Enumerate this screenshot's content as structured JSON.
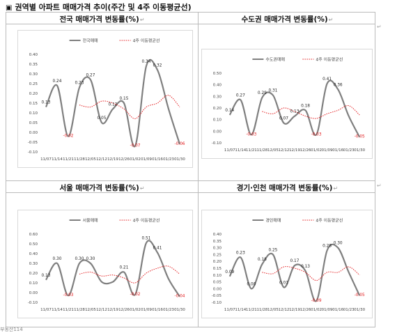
{
  "header": {
    "bullet": "▣",
    "title": "권역별 아파트 매매가격 추이(주간 및 4주 이동평균선)"
  },
  "return_mark": "↵",
  "colors": {
    "line": "#7f7f7f",
    "avg": "#e31a1c",
    "label_pos": "#222222",
    "label_neg": "#e31a1c",
    "axis_text": "#444444"
  },
  "charts": [
    {
      "title": "전국 매매가격 변동률(%)",
      "legend_line": "전국매매",
      "legend_avg": "4주 이동평균선",
      "yticks": [
        "0.40",
        "0.35",
        "0.30",
        "0.25",
        "0.20",
        "0.15",
        "0.10",
        "0.05",
        "0.00",
        "-0.05",
        "-0.10"
      ],
      "chart_data": {
        "type": "line",
        "ylim": [
          -0.1,
          0.4
        ],
        "categories": [
          "11/07",
          "11/14",
          "11/21",
          "11/28",
          "12/05",
          "12/12",
          "12/19",
          "12/26",
          "01/02",
          "01/09",
          "01/16",
          "01/23",
          "01/30"
        ],
        "series": [
          {
            "name": "전국매매",
            "values": [
              0.13,
              0.24,
              -0.02,
              0.23,
              0.27,
              0.05,
              0.12,
              0.15,
              -0.07,
              0.34,
              0.32,
              0.12,
              -0.06
            ]
          },
          {
            "name": "4주 이동평균선",
            "values": [
              null,
              null,
              null,
              0.14,
              0.13,
              0.16,
              0.15,
              0.12,
              0.07,
              0.13,
              0.15,
              0.19,
              0.13
            ]
          }
        ]
      },
      "labels": [
        {
          "i": 0,
          "t": "0.13"
        },
        {
          "i": 1,
          "t": "0.24"
        },
        {
          "i": 2,
          "t": "-0.02"
        },
        {
          "i": 3,
          "t": "0.23"
        },
        {
          "i": 4,
          "t": "0.27"
        },
        {
          "i": 5,
          "t": "0.05"
        },
        {
          "i": 6,
          "t": "0.12"
        },
        {
          "i": 7,
          "t": "0.15"
        },
        {
          "i": 8,
          "t": "-0.07"
        },
        {
          "i": 9,
          "t": "0.34"
        },
        {
          "i": 10,
          "t": "0.32"
        },
        {
          "i": 12,
          "t": "-0.06"
        }
      ]
    },
    {
      "title": "수도권 매매가격 변동률(%)",
      "legend_line": "수도권매매",
      "legend_avg": "4주 이동평균선",
      "yticks": [
        "0.50",
        "0.40",
        "0.30",
        "0.20",
        "0.10",
        "0.00",
        "-0.10"
      ],
      "chart_data": {
        "type": "line",
        "ylim": [
          -0.1,
          0.5
        ],
        "categories": [
          "11/07",
          "11/14",
          "11/21",
          "11/28",
          "12/05",
          "12/12",
          "12/19",
          "12/26",
          "01/02",
          "01/09",
          "01/16",
          "01/23",
          "01/30"
        ],
        "series": [
          {
            "name": "수도권매매",
            "values": [
              0.14,
              0.27,
              -0.03,
              0.29,
              0.31,
              0.07,
              0.13,
              0.18,
              -0.03,
              0.41,
              0.36,
              0.13,
              -0.05
            ]
          },
          {
            "name": "4주 이동평균선",
            "values": [
              null,
              null,
              null,
              0.17,
              0.15,
              0.2,
              0.17,
              0.13,
              0.11,
              0.15,
              0.18,
              0.22,
              0.14
            ]
          }
        ]
      },
      "labels": [
        {
          "i": 0,
          "t": "0.14"
        },
        {
          "i": 1,
          "t": "0.27"
        },
        {
          "i": 2,
          "t": "-0.03"
        },
        {
          "i": 3,
          "t": "0.29"
        },
        {
          "i": 4,
          "t": "0.31"
        },
        {
          "i": 5,
          "t": "0.07"
        },
        {
          "i": 6,
          "t": "0.13"
        },
        {
          "i": 7,
          "t": "0.18"
        },
        {
          "i": 8,
          "t": "-0.03"
        },
        {
          "i": 9,
          "t": "0.41"
        },
        {
          "i": 10,
          "t": "0.36"
        },
        {
          "i": 12,
          "t": "-0.05"
        }
      ]
    },
    {
      "title": "서울 매매가격 변동률(%)",
      "legend_line": "서울매매",
      "legend_avg": "4주 이동평균선",
      "yticks": [
        "0.60",
        "0.50",
        "0.40",
        "0.30",
        "0.20",
        "0.10",
        "0.00",
        "-0.10"
      ],
      "chart_data": {
        "type": "line",
        "ylim": [
          -0.1,
          0.6
        ],
        "categories": [
          "11/07",
          "11/14",
          "11/21",
          "11/28",
          "12/05",
          "12/12",
          "12/19",
          "12/26",
          "01/02",
          "01/09",
          "01/16",
          "01/23",
          "01/30"
        ],
        "series": [
          {
            "name": "서울매매",
            "values": [
              0.13,
              0.3,
              -0.03,
              0.3,
              0.3,
              0.11,
              0.11,
              0.21,
              -0.02,
              0.51,
              0.41,
              0.14,
              -0.04
            ]
          },
          {
            "name": "4주 이동평균선",
            "values": [
              null,
              null,
              null,
              0.19,
              0.21,
              0.17,
              0.18,
              0.15,
              0.1,
              0.2,
              0.25,
              0.27,
              0.19
            ]
          }
        ]
      },
      "labels": [
        {
          "i": 0,
          "t": "0.13"
        },
        {
          "i": 1,
          "t": "0.30"
        },
        {
          "i": 2,
          "t": "-0.03"
        },
        {
          "i": 3,
          "t": "0.30"
        },
        {
          "i": 4,
          "t": "0.30"
        },
        {
          "i": 7,
          "t": "0.21"
        },
        {
          "i": 8,
          "t": "-0.02"
        },
        {
          "i": 9,
          "t": "0.51"
        },
        {
          "i": 10,
          "t": "0.41"
        },
        {
          "i": 12,
          "t": "-0.04"
        }
      ]
    },
    {
      "title": "경기·인천 매매가격 변동률(%)",
      "legend_line": "경인매매",
      "legend_avg": "4주 이동평균선",
      "yticks": [
        "0.40",
        "0.35",
        "0.30",
        "0.25",
        "0.20",
        "0.15",
        "0.10",
        "0.05",
        "0.00",
        "-0.05",
        "-0.10"
      ],
      "chart_data": {
        "type": "line",
        "ylim": [
          -0.1,
          0.4
        ],
        "categories": [
          "11/07",
          "11/14",
          "11/21",
          "11/28",
          "12/05",
          "12/12",
          "12/19",
          "12/26",
          "01/02",
          "01/09",
          "01/16",
          "01/23",
          "01/30"
        ],
        "series": [
          {
            "name": "경인매매",
            "values": [
              0.09,
              0.23,
              0.0,
              0.18,
              0.25,
              0.01,
              0.17,
              0.13,
              -0.09,
              0.28,
              0.3,
              0.12,
              -0.05
            ]
          },
          {
            "name": "4주 이동평균선",
            "values": [
              null,
              null,
              null,
              0.12,
              0.11,
              0.16,
              0.15,
              0.12,
              0.06,
              0.12,
              0.12,
              0.16,
              0.1
            ]
          }
        ]
      },
      "labels": [
        {
          "i": 0,
          "t": "0.09"
        },
        {
          "i": 1,
          "t": "0.23"
        },
        {
          "i": 2,
          "t": "0.00"
        },
        {
          "i": 3,
          "t": "0.18"
        },
        {
          "i": 4,
          "t": "0.25"
        },
        {
          "i": 5,
          "t": "0.01"
        },
        {
          "i": 6,
          "t": "0.17"
        },
        {
          "i": 7,
          "t": "0.13"
        },
        {
          "i": 8,
          "t": "-0.09"
        },
        {
          "i": 9,
          "t": "0.28"
        },
        {
          "i": 10,
          "t": "0.30"
        },
        {
          "i": 12,
          "t": "-0.05"
        }
      ]
    }
  ],
  "footer": "부동산114"
}
